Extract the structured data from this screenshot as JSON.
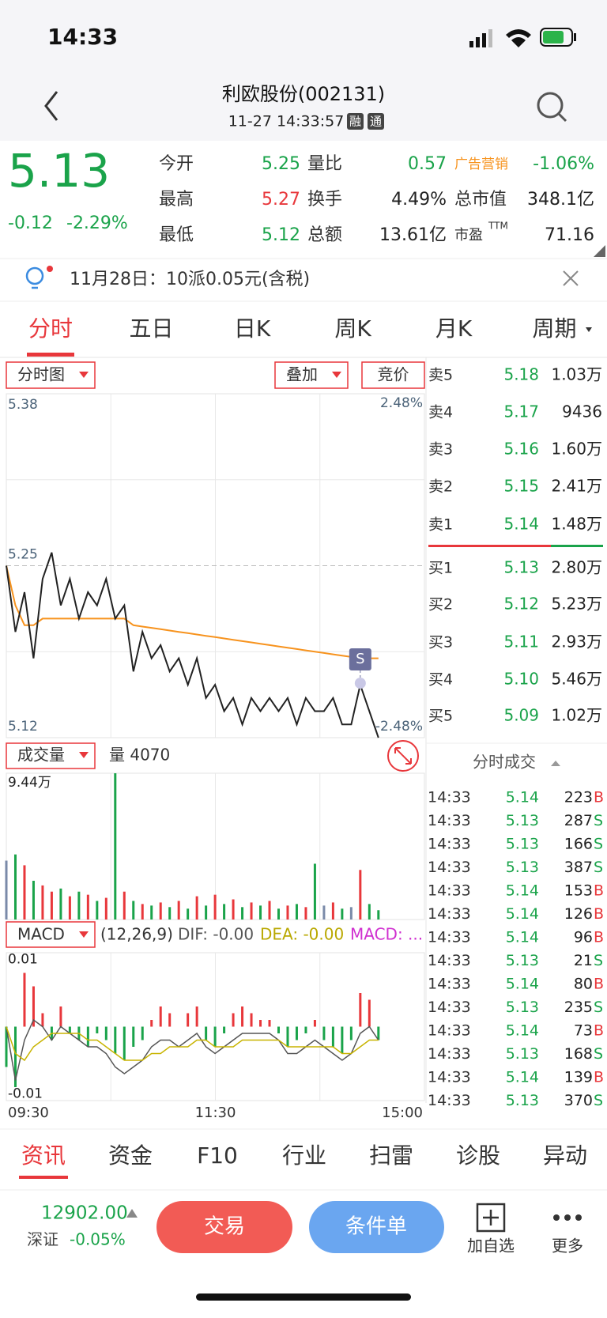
{
  "status": {
    "time": "14:33"
  },
  "header": {
    "title": "利欧股份(002131)",
    "subtitle": "11-27 14:33:57",
    "badges": [
      "融",
      "通"
    ]
  },
  "quote": {
    "price": "5.13",
    "change": "-0.12",
    "change_pct": "-2.29%",
    "stats": [
      [
        "今开",
        "5.25",
        "量比",
        "0.57",
        "广告营销",
        "-1.06%"
      ],
      [
        "最高",
        "5.27",
        "换手",
        "4.49%",
        "总市值",
        "348.1亿"
      ],
      [
        "最低",
        "5.12",
        "总额",
        "13.61亿",
        "市盈",
        "71.16"
      ]
    ],
    "ttm": "TTM"
  },
  "notice": "11月28日：10派0.05元(含税)",
  "tabs": [
    "分时",
    "五日",
    "日K",
    "周K",
    "月K",
    "周期"
  ],
  "controls": [
    "分时图",
    "叠加",
    "竞价"
  ],
  "price_chart": {
    "x_labels": [
      "09:30",
      "11:30",
      "15:00"
    ],
    "ylim": [
      5.12,
      5.38
    ],
    "yticks": [
      5.12,
      5.25,
      5.38
    ],
    "pct_labels": [
      "2.48%",
      "-2.48%"
    ],
    "prices": [
      5.25,
      5.2,
      5.23,
      5.18,
      5.24,
      5.26,
      5.22,
      5.24,
      5.21,
      5.23,
      5.22,
      5.24,
      5.21,
      5.22,
      5.17,
      5.2,
      5.18,
      5.19,
      5.17,
      5.18,
      5.16,
      5.18,
      5.15,
      5.16,
      5.14,
      5.15,
      5.13,
      5.15,
      5.14,
      5.15,
      5.14,
      5.15,
      5.13,
      5.15,
      5.14,
      5.14,
      5.15,
      5.13,
      5.13,
      5.16,
      5.14,
      5.12
    ],
    "avg": [
      5.25,
      5.22,
      5.205,
      5.205,
      5.21,
      5.21,
      5.21,
      5.21,
      5.21,
      5.21,
      5.21,
      5.21,
      5.21,
      5.21,
      5.205,
      5.204,
      5.203,
      5.202,
      5.201,
      5.2,
      5.199,
      5.198,
      5.197,
      5.196,
      5.195,
      5.194,
      5.193,
      5.192,
      5.191,
      5.19,
      5.189,
      5.188,
      5.187,
      5.186,
      5.185,
      5.184,
      5.183,
      5.182,
      5.181,
      5.181,
      5.18,
      5.18
    ],
    "marker": "S",
    "line_color": "#222222",
    "avg_color": "#f7931e"
  },
  "volume": {
    "label": "成交量",
    "current": "量 4070",
    "ylim": [
      0,
      9.44
    ],
    "yticks": [
      {
        "value": 9.44,
        "label": "9.44万"
      }
    ],
    "values": [
      3.8,
      4.2,
      3.5,
      2.5,
      2.2,
      1.8,
      2.0,
      1.5,
      1.8,
      1.6,
      1.2,
      1.4,
      9.44,
      1.8,
      1.2,
      1.0,
      0.9,
      1.1,
      0.8,
      1.2,
      0.7,
      1.5,
      0.9,
      1.6,
      1.0,
      1.3,
      0.8,
      1.1,
      0.9,
      1.2,
      0.7,
      0.9,
      1.0,
      0.8,
      3.6,
      0.9,
      1.1,
      0.7,
      0.8,
      3.2,
      1.0,
      0.6
    ]
  },
  "macd": {
    "label": "MACD",
    "params": "(12,26,9)",
    "dif_label": "DIF: -0.00",
    "dea_label": "DEA: -0.00",
    "macd_label": "MACD: ...",
    "ylim": [
      -0.011,
      0.011
    ],
    "yticks": [
      0.01,
      -0.01
    ],
    "bars": [
      -0.006,
      -0.009,
      0.008,
      0.006,
      0.002,
      -0.002,
      0.003,
      -0.001,
      -0.002,
      -0.003,
      -0.001,
      -0.002,
      -0.004,
      -0.005,
      -0.003,
      -0.002,
      0.001,
      0.003,
      0.002,
      0.0,
      0.002,
      0.003,
      -0.002,
      -0.003,
      -0.001,
      0.002,
      0.003,
      0.002,
      0.001,
      0.001,
      -0.001,
      -0.003,
      -0.002,
      -0.001,
      0.001,
      -0.002,
      -0.003,
      -0.004,
      -0.002,
      0.005,
      0.004,
      -0.002
    ],
    "dif": [
      0,
      -0.008,
      -0.002,
      0.001,
      0.0,
      -0.002,
      0.0,
      -0.001,
      -0.002,
      -0.003,
      -0.003,
      -0.004,
      -0.006,
      -0.007,
      -0.006,
      -0.005,
      -0.003,
      -0.002,
      -0.002,
      -0.003,
      -0.002,
      -0.001,
      -0.003,
      -0.004,
      -0.003,
      -0.002,
      -0.001,
      -0.001,
      -0.001,
      -0.001,
      -0.002,
      -0.004,
      -0.004,
      -0.003,
      -0.002,
      -0.003,
      -0.004,
      -0.005,
      -0.004,
      -0.001,
      0.0,
      -0.002
    ],
    "dea": [
      0,
      -0.004,
      -0.005,
      -0.003,
      -0.002,
      -0.001,
      -0.001,
      -0.001,
      -0.001,
      -0.002,
      -0.002,
      -0.003,
      -0.004,
      -0.005,
      -0.005,
      -0.005,
      -0.004,
      -0.004,
      -0.003,
      -0.003,
      -0.003,
      -0.002,
      -0.002,
      -0.003,
      -0.003,
      -0.003,
      -0.002,
      -0.002,
      -0.002,
      -0.002,
      -0.002,
      -0.003,
      -0.003,
      -0.003,
      -0.003,
      -0.003,
      -0.003,
      -0.004,
      -0.004,
      -0.003,
      -0.002,
      -0.002
    ]
  },
  "order_book": [
    [
      "卖5",
      "5.18",
      "1.03万"
    ],
    [
      "卖4",
      "5.17",
      "9436"
    ],
    [
      "卖3",
      "5.16",
      "1.60万"
    ],
    [
      "卖2",
      "5.15",
      "2.41万"
    ],
    [
      "卖1",
      "5.14",
      "1.48万"
    ],
    [
      "买1",
      "5.13",
      "2.80万"
    ],
    [
      "买2",
      "5.12",
      "5.23万"
    ],
    [
      "买3",
      "5.11",
      "2.93万"
    ],
    [
      "买4",
      "5.10",
      "5.46万"
    ],
    [
      "买5",
      "5.09",
      "1.02万"
    ]
  ],
  "trades_title": "分时成交",
  "trades": [
    [
      "14:33",
      "5.14",
      "223",
      "B"
    ],
    [
      "14:33",
      "5.13",
      "287",
      "S"
    ],
    [
      "14:33",
      "5.13",
      "166",
      "S"
    ],
    [
      "14:33",
      "5.13",
      "387",
      "S"
    ],
    [
      "14:33",
      "5.14",
      "153",
      "B"
    ],
    [
      "14:33",
      "5.14",
      "126",
      "B"
    ],
    [
      "14:33",
      "5.14",
      "96",
      "B"
    ],
    [
      "14:33",
      "5.13",
      "21",
      "S"
    ],
    [
      "14:33",
      "5.14",
      "80",
      "B"
    ],
    [
      "14:33",
      "5.13",
      "235",
      "S"
    ],
    [
      "14:33",
      "5.14",
      "73",
      "B"
    ],
    [
      "14:33",
      "5.13",
      "168",
      "S"
    ],
    [
      "14:33",
      "5.14",
      "139",
      "B"
    ],
    [
      "14:33",
      "5.13",
      "370",
      "S"
    ]
  ],
  "bottom_tabs": [
    "资讯",
    "资金",
    "F10",
    "行业",
    "扫雷",
    "诊股",
    "异动"
  ],
  "footer": {
    "index": "12902.00",
    "index_name": "深证",
    "index_change": "-0.05%",
    "trade": "交易",
    "condition": "条件单",
    "add": "加自选",
    "more": "更多"
  }
}
